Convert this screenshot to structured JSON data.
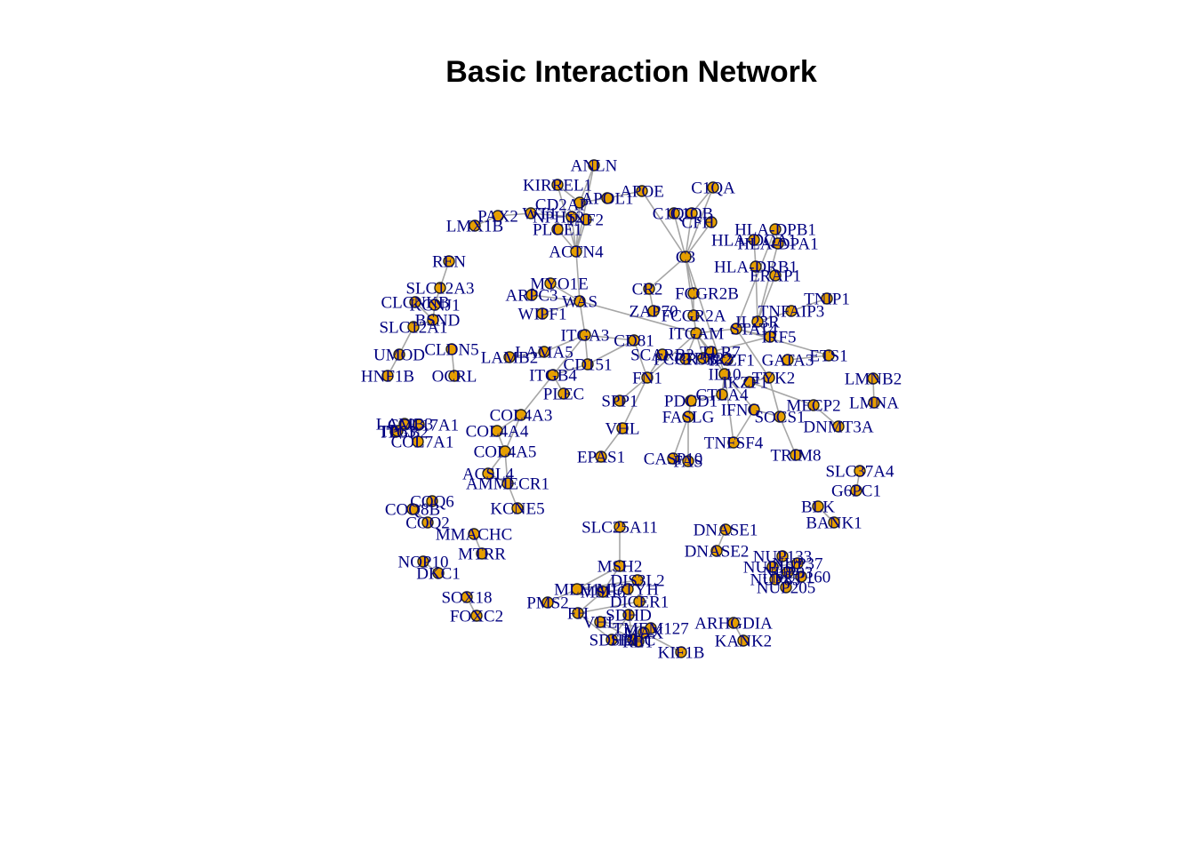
{
  "chart_data": {
    "type": "network",
    "title": "Basic Interaction Network",
    "colors": {
      "node_fill": "#E69F00",
      "node_border": "#222222",
      "edge": "#A6A6A6",
      "label": "#00007F"
    },
    "nodes": [
      "ANLN",
      "KIRREL1",
      "APOE",
      "APOL1",
      "C1QA",
      "CD2AP",
      "WT1",
      "NPHS2",
      "PAX2",
      "LMX1B",
      "PLCE1",
      "INF2",
      "ACTN4",
      "C1QB",
      "C1QC",
      "C3",
      "CFH",
      "HLA-DPB1",
      "HLA-DQA1",
      "HLA-DPA1",
      "HLA-DRB1",
      "ERAP1",
      "REN",
      "SLC12A3",
      "CLCNKB",
      "KCNJ1",
      "BSND",
      "SLC12A1",
      "UMOD",
      "CLDN5",
      "HNF1B",
      "OCRL",
      "MYO1E",
      "ARPC3",
      "WAS",
      "WIPF1",
      "CR2",
      "FCGR2B",
      "ZAP70",
      "FCGR2A",
      "ITGA3",
      "CD81",
      "ITGAM",
      "IL23R",
      "TNFAIP3",
      "TNIP1",
      "IRF5",
      "STAT4",
      "ETS1",
      "LAMA5",
      "LAMB2",
      "CD151",
      "SCARB2",
      "FCGR3B",
      "TLR7",
      "BLK2",
      "GATA3",
      "ITGB4",
      "FN1",
      "IL10",
      "TYK2",
      "IKZF1",
      "PTPN22",
      "PLEC",
      "SPP1",
      "PDCD1",
      "CTLA4",
      "MECP2",
      "LMNB2",
      "LMNA",
      "FASLG",
      "IFNG",
      "SOCS1",
      "DNMT3A",
      "VHL",
      "TNFSF4",
      "EPAS1",
      "CASP10",
      "FAS",
      "TRIM8",
      "COL4A3",
      "COL4A4",
      "COL4A5",
      "ACSL4",
      "AMMECR1",
      "KCNE5",
      "LAMB3",
      "COL17A1",
      "ITGB2",
      "TP63",
      "COL7A1",
      "COQ6",
      "COQ8B",
      "COQ2",
      "MMACHC",
      "MTRR",
      "NOP10",
      "DKC1",
      "SOX18",
      "FOXC2",
      "SLC37A4",
      "G6PC1",
      "BLK",
      "BANK1",
      "SLC25A11",
      "DNASE1",
      "DNASE2",
      "NUP133",
      "NUP107",
      "NUP93",
      "NUP205",
      "NUP160",
      "NUP85",
      "MSH2",
      "MLH1",
      "MSH6",
      "MUTYH",
      "PMS2",
      "DIS3L2",
      "DICER1",
      "FH",
      "SDHB",
      "SDHC",
      "SDHD",
      "RET",
      "VHL2",
      "TMEM127",
      "MAX",
      "KIF1B",
      "ARHGDIA",
      "KANK2",
      "NUP37"
    ],
    "edges": [
      [
        "ANLN",
        "CD2AP"
      ],
      [
        "ANLN",
        "ACTN4"
      ],
      [
        "KIRREL1",
        "CD2AP"
      ],
      [
        "KIRREL1",
        "ACTN4"
      ],
      [
        "APOL1",
        "CD2AP"
      ],
      [
        "APOE",
        "APOL1"
      ],
      [
        "APOE",
        "C3"
      ],
      [
        "WT1",
        "NPHS2"
      ],
      [
        "PAX2",
        "WT1"
      ],
      [
        "LMX1B",
        "PAX2"
      ],
      [
        "PLCE1",
        "ACTN4"
      ],
      [
        "INF2",
        "ACTN4"
      ],
      [
        "NPHS2",
        "ACTN4"
      ],
      [
        "CD2AP",
        "ACTN4"
      ],
      [
        "ACTN4",
        "WAS"
      ],
      [
        "C1QA",
        "C3"
      ],
      [
        "C1QB",
        "C3"
      ],
      [
        "C1QC",
        "C3"
      ],
      [
        "CFH",
        "C3"
      ],
      [
        "C1QA",
        "C1QB"
      ],
      [
        "C3",
        "CR2"
      ],
      [
        "C3",
        "ITGAM"
      ],
      [
        "C3",
        "FCGR2B"
      ],
      [
        "C3",
        "IL10"
      ],
      [
        "HLA-DPB1",
        "HLA-DPA1"
      ],
      [
        "HLA-DQA1",
        "HLA-DRB1"
      ],
      [
        "HLA-DRB1",
        "ERAP1"
      ],
      [
        "HLA-DPA1",
        "IL23R"
      ],
      [
        "HLA-DRB1",
        "IL23R"
      ],
      [
        "ERAP1",
        "IL23R"
      ],
      [
        "HLA-DPB1",
        "STAT4"
      ],
      [
        "REN",
        "SLC12A3"
      ],
      [
        "SLC12A3",
        "KCNJ1"
      ],
      [
        "CLCNKB",
        "BSND"
      ],
      [
        "KCNJ1",
        "BSND"
      ],
      [
        "SLC12A1",
        "BSND"
      ],
      [
        "UMOD",
        "SLC12A1"
      ],
      [
        "HNF1B",
        "UMOD"
      ],
      [
        "CLDN5",
        "OCRL"
      ],
      [
        "MYO1E",
        "WAS"
      ],
      [
        "ARPC3",
        "WAS"
      ],
      [
        "WIPF1",
        "WAS"
      ],
      [
        "WAS",
        "ITGA3"
      ],
      [
        "WAS",
        "ITGAM"
      ],
      [
        "ZAP70",
        "CR2"
      ],
      [
        "FCGR2B",
        "FCGR2A"
      ],
      [
        "FCGR2A",
        "ITGAM"
      ],
      [
        "ITGA3",
        "CD81"
      ],
      [
        "ITGA3",
        "CD151"
      ],
      [
        "ITGA3",
        "LAMA5"
      ],
      [
        "LAMA5",
        "LAMB2"
      ],
      [
        "ITGA3",
        "ITGB4"
      ],
      [
        "ITGB4",
        "PLEC"
      ],
      [
        "ITGB4",
        "CD151"
      ],
      [
        "CD151",
        "CD81"
      ],
      [
        "CD81",
        "FN1"
      ],
      [
        "ITGAM",
        "FCGR3B"
      ],
      [
        "ITGAM",
        "IL10"
      ],
      [
        "ITGAM",
        "TLR7"
      ],
      [
        "ITGAM",
        "STAT4"
      ],
      [
        "SCARB2",
        "FN1"
      ],
      [
        "FN1",
        "SPP1"
      ],
      [
        "FN1",
        "VHL"
      ],
      [
        "FN1",
        "ITGAM"
      ],
      [
        "IL23R",
        "IRF5"
      ],
      [
        "IL23R",
        "TNFAIP3"
      ],
      [
        "TNFAIP3",
        "TNIP1"
      ],
      [
        "STAT4",
        "IRF5"
      ],
      [
        "STAT4",
        "ETS1"
      ],
      [
        "STAT4",
        "TYK2"
      ],
      [
        "TYK2",
        "IKZF1"
      ],
      [
        "IL10",
        "CTLA4"
      ],
      [
        "IL10",
        "IFNG"
      ],
      [
        "CTLA4",
        "PDCD1"
      ],
      [
        "PDCD1",
        "FASLG"
      ],
      [
        "FASLG",
        "FAS"
      ],
      [
        "FASLG",
        "CASP10"
      ],
      [
        "FAS",
        "CASP10"
      ],
      [
        "IFNG",
        "SOCS1"
      ],
      [
        "IFNG",
        "TNFSF4"
      ],
      [
        "SOCS1",
        "TYK2"
      ],
      [
        "SOCS1",
        "TRIM8"
      ],
      [
        "MECP2",
        "DNMT3A"
      ],
      [
        "LMNB2",
        "LMNA"
      ],
      [
        "VHL",
        "EPAS1"
      ],
      [
        "IKZF1",
        "MECP2"
      ],
      [
        "ITGAM",
        "PTPN22"
      ],
      [
        "TLR7",
        "IRF5"
      ],
      [
        "IL10",
        "TNFSF4"
      ],
      [
        "GATA3",
        "ETS1"
      ],
      [
        "COL4A3",
        "COL4A4"
      ],
      [
        "COL4A3",
        "COL4A5"
      ],
      [
        "COL4A4",
        "COL4A5"
      ],
      [
        "COL4A5",
        "ACSL4"
      ],
      [
        "COL4A5",
        "AMMECR1"
      ],
      [
        "AMMECR1",
        "KCNE5"
      ],
      [
        "ACSL4",
        "AMMECR1"
      ],
      [
        "COL4A3",
        "ITGB4"
      ],
      [
        "LAMB3",
        "COL17A1"
      ],
      [
        "COL17A1",
        "ITGB2"
      ],
      [
        "TP63",
        "ITGB2"
      ],
      [
        "COL7A1",
        "COL17A1"
      ],
      [
        "LAMB3",
        "ITGB2"
      ],
      [
        "COQ6",
        "COQ8B"
      ],
      [
        "COQ8B",
        "COQ2"
      ],
      [
        "MMACHC",
        "MTRR"
      ],
      [
        "NOP10",
        "DKC1"
      ],
      [
        "SOX18",
        "FOXC2"
      ],
      [
        "SLC37A4",
        "G6PC1"
      ],
      [
        "BLK",
        "BANK1"
      ],
      [
        "SLC25A11",
        "MSH2"
      ],
      [
        "DNASE1",
        "DNASE2"
      ],
      [
        "NUP133",
        "NUP107"
      ],
      [
        "NUP107",
        "NUP93"
      ],
      [
        "NUP93",
        "NUP205"
      ],
      [
        "NUP160",
        "NUP85"
      ],
      [
        "NUP133",
        "NUP160"
      ],
      [
        "NUP37",
        "NUP107"
      ],
      [
        "NUP85",
        "NUP93"
      ],
      [
        "MSH2",
        "MLH1"
      ],
      [
        "MSH2",
        "MSH6"
      ],
      [
        "MLH1",
        "PMS2"
      ],
      [
        "MSH6",
        "MUTYH"
      ],
      [
        "MLH1",
        "DIS3L2"
      ],
      [
        "DICER1",
        "FH"
      ],
      [
        "SDHB",
        "SDHC"
      ],
      [
        "SDHC",
        "SDHD"
      ],
      [
        "SDHB",
        "SDHD"
      ],
      [
        "RET",
        "VHL2"
      ],
      [
        "VHL2",
        "TMEM127"
      ],
      [
        "TMEM127",
        "MAX"
      ],
      [
        "MAX",
        "KIF1B"
      ],
      [
        "RET",
        "MAX"
      ],
      [
        "FH",
        "SDHB"
      ],
      [
        "MSH6",
        "FH"
      ],
      [
        "ARHGDIA",
        "KANK2"
      ]
    ]
  }
}
